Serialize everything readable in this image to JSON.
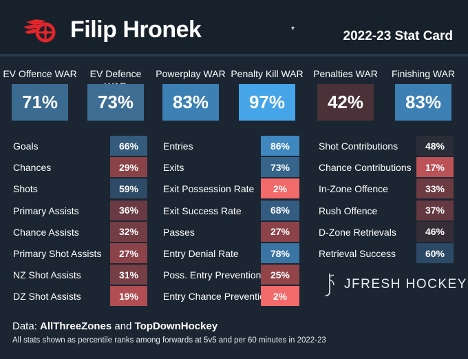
{
  "header": {
    "player_name": "Filip Hronek",
    "card_title": "2022-23 Stat Card",
    "caret": "▾"
  },
  "colors": {
    "page_bg": "#1b2632",
    "header_bg": "#17212b",
    "team_red": "#e2252b"
  },
  "war_boxes": [
    {
      "label": "EV Offence WAR",
      "value": "71%",
      "color": "#3b6b91"
    },
    {
      "label": "EV Defence WAR",
      "value": "73%",
      "color": "#3e6e94"
    },
    {
      "label": "Powerplay WAR",
      "value": "83%",
      "color": "#3d80b4"
    },
    {
      "label": "Penalty Kill WAR",
      "value": "97%",
      "color": "#45a5e8"
    },
    {
      "label": "Penalties WAR",
      "value": "42%",
      "color": "#4a3238"
    },
    {
      "label": "Finishing WAR",
      "value": "83%",
      "color": "#3d80b4"
    }
  ],
  "columns": [
    {
      "rows": [
        {
          "label": "Goals",
          "value": "66%",
          "color": "#345a7c"
        },
        {
          "label": "Chances",
          "value": "29%",
          "color": "#8a4249"
        },
        {
          "label": "Shots",
          "value": "59%",
          "color": "#2d4a66"
        },
        {
          "label": "Primary Assists",
          "value": "36%",
          "color": "#6a3a42"
        },
        {
          "label": "Chance Assists",
          "value": "32%",
          "color": "#733d44"
        },
        {
          "label": "Primary Shot Assists",
          "value": "27%",
          "color": "#8c4249"
        },
        {
          "label": "NZ Shot Assists",
          "value": "31%",
          "color": "#763e45"
        },
        {
          "label": "DZ Shot Assists",
          "value": "19%",
          "color": "#b04e53"
        }
      ]
    },
    {
      "rows": [
        {
          "label": "Entries",
          "value": "86%",
          "color": "#3f87bf"
        },
        {
          "label": "Exits",
          "value": "73%",
          "color": "#36648b"
        },
        {
          "label": "Exit Possession Rate",
          "value": "2%",
          "color": "#f36a6a"
        },
        {
          "label": "Exit Success Rate",
          "value": "68%",
          "color": "#335c80"
        },
        {
          "label": "Passes",
          "value": "27%",
          "color": "#8c4249"
        },
        {
          "label": "Entry Denial Rate",
          "value": "78%",
          "color": "#3a74a3"
        },
        {
          "label": "Poss. Entry Prevention",
          "value": "25%",
          "color": "#924449"
        },
        {
          "label": "Entry Chance Prevention",
          "value": "2%",
          "color": "#f36a6a"
        }
      ]
    },
    {
      "rows": [
        {
          "label": "Shot Contributions",
          "value": "48%",
          "color": "#2a2d37"
        },
        {
          "label": "Chance Contributions",
          "value": "17%",
          "color": "#bb5257"
        },
        {
          "label": "In-Zone Offence",
          "value": "33%",
          "color": "#6c3b42"
        },
        {
          "label": "Rush Offence",
          "value": "37%",
          "color": "#633840"
        },
        {
          "label": "D-Zone Retrievals",
          "value": "46%",
          "color": "#352e37"
        },
        {
          "label": "Retrieval Success",
          "value": "60%",
          "color": "#2c4a66"
        }
      ]
    }
  ],
  "brand": {
    "text": "JFRESH HOCKEY"
  },
  "footer": {
    "data_prefix": "Data: ",
    "source_1": "AllThreeZones",
    "conjunction": " and ",
    "source_2": "TopDownHockey",
    "note": "All stats shown as percentile ranks among forwards at 5v5 and per 60 minutes in 2022-23"
  }
}
